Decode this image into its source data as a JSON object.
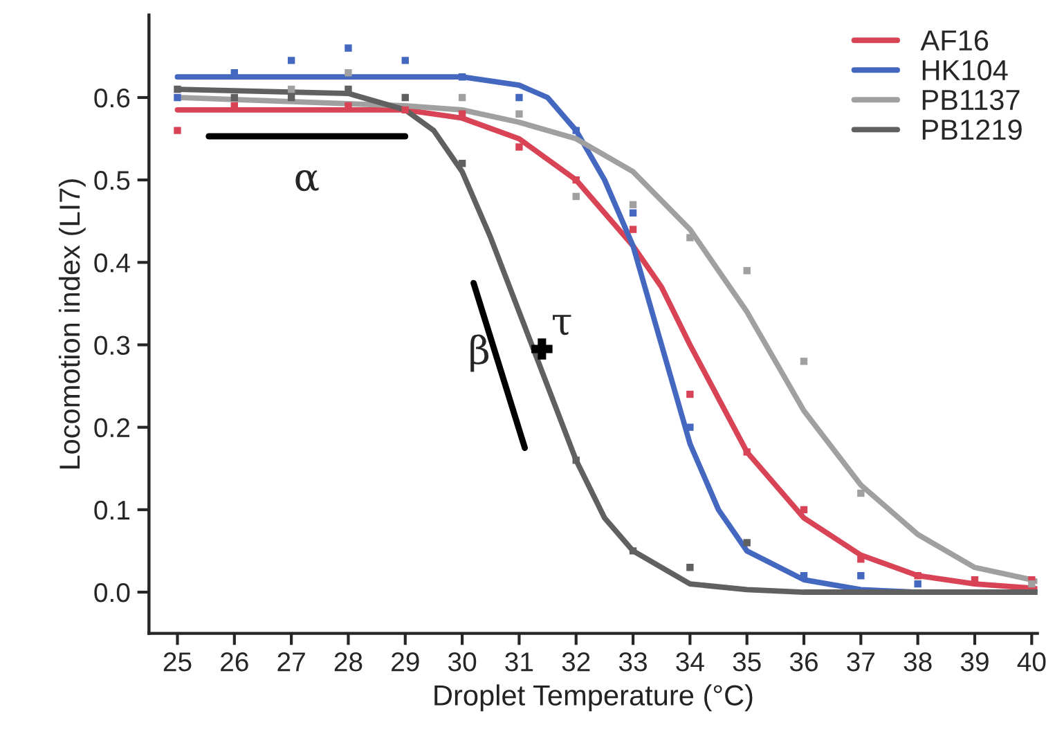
{
  "chart_data": {
    "type": "line",
    "xlabel": "Droplet Temperature (°C)",
    "ylabel": "Locomotion index (LI7)",
    "xlim": [
      24.5,
      40.1
    ],
    "xticks": [
      25,
      26,
      27,
      28,
      29,
      30,
      31,
      32,
      33,
      34,
      35,
      36,
      37,
      38,
      39,
      40
    ],
    "ylim": [
      -0.05,
      0.7
    ],
    "yticks": [
      {
        "value": 0,
        "label": "0.0"
      },
      {
        "value": 0.1,
        "label": "0.1"
      },
      {
        "value": 0.2,
        "label": "0.2"
      },
      {
        "value": 0.3,
        "label": "0.3"
      },
      {
        "value": 0.4,
        "label": "0.4"
      },
      {
        "value": 0.5,
        "label": "0.5"
      },
      {
        "value": 0.6,
        "label": "0.6"
      }
    ],
    "grid": false,
    "legend": "top right",
    "line_style": "solid",
    "series": [
      {
        "name": "AF16",
        "color": "#d84455",
        "marker": "none",
        "x": [
          25,
          29,
          30,
          31,
          32,
          33,
          33.5,
          34,
          35,
          36,
          37,
          38,
          39,
          40,
          40.1
        ],
        "values": [
          0.585,
          0.585,
          0.575,
          0.55,
          0.5,
          0.42,
          0.37,
          0.3,
          0.17,
          0.09,
          0.045,
          0.02,
          0.01,
          0.005,
          0.004
        ]
      },
      {
        "name": "HK104",
        "color": "#4468c0",
        "marker": "none",
        "x": [
          25,
          30,
          31,
          31.5,
          32,
          32.5,
          33,
          33.5,
          34,
          34.5,
          35,
          36,
          37,
          38,
          40.1
        ],
        "values": [
          0.625,
          0.625,
          0.615,
          0.6,
          0.56,
          0.5,
          0.42,
          0.3,
          0.18,
          0.1,
          0.05,
          0.015,
          0.003,
          0.0,
          0.0
        ]
      },
      {
        "name": "PB1137",
        "color": "#a0a0a0",
        "marker": "none",
        "x": [
          25,
          29,
          30,
          31,
          32,
          33,
          34,
          35,
          36,
          37,
          38,
          39,
          40,
          40.1
        ],
        "values": [
          0.6,
          0.59,
          0.585,
          0.57,
          0.55,
          0.51,
          0.44,
          0.34,
          0.22,
          0.13,
          0.07,
          0.03,
          0.015,
          0.013
        ]
      },
      {
        "name": "PB1219",
        "color": "#606060",
        "marker": "none",
        "x": [
          25,
          28,
          29,
          29.5,
          30,
          30.5,
          31,
          31.5,
          32,
          32.5,
          33,
          34,
          35,
          36,
          40.1
        ],
        "values": [
          0.61,
          0.605,
          0.585,
          0.56,
          0.51,
          0.43,
          0.34,
          0.25,
          0.16,
          0.09,
          0.05,
          0.01,
          0.003,
          0.0,
          0.0
        ]
      },
      {
        "color": "#d84455",
        "type": "scatter",
        "marker": "square",
        "x": [
          25,
          26,
          27,
          28,
          29,
          30,
          31,
          32,
          33,
          34,
          35,
          36,
          37,
          38,
          39,
          40
        ],
        "values": [
          0.56,
          0.59,
          null,
          0.59,
          0.585,
          0.58,
          0.54,
          0.5,
          0.44,
          0.24,
          0.17,
          0.1,
          0.04,
          0.02,
          0.015,
          0.015
        ]
      },
      {
        "color": "#4468c0",
        "type": "scatter",
        "marker": "square",
        "x": [
          25,
          26,
          27,
          28,
          29,
          30,
          31,
          32,
          33,
          34,
          35,
          36,
          37,
          38
        ],
        "values": [
          0.6,
          0.63,
          0.645,
          0.66,
          0.645,
          0.625,
          0.6,
          0.56,
          0.46,
          0.2,
          null,
          0.02,
          0.02,
          0.01
        ]
      },
      {
        "color": "#a0a0a0",
        "type": "scatter",
        "marker": "square",
        "x": [
          27,
          28,
          30,
          31,
          32,
          33,
          34,
          35,
          36,
          37,
          40
        ],
        "values": [
          0.61,
          0.63,
          0.6,
          0.58,
          0.48,
          0.47,
          0.43,
          0.39,
          0.28,
          0.12,
          0.01
        ]
      },
      {
        "color": "#606060",
        "type": "scatter",
        "marker": "square",
        "x": [
          25,
          26,
          27,
          28,
          29,
          30,
          32,
          33,
          34,
          35
        ],
        "values": [
          0.61,
          0.6,
          0.6,
          0.61,
          0.6,
          0.52,
          0.16,
          0.05,
          0.03,
          0.06
        ]
      },
      {
        "color": "#000000",
        "type": "line",
        "marker": "none",
        "x": [
          25.55,
          29.0
        ],
        "values": [
          0.553,
          0.553
        ]
      },
      {
        "color": "#000000",
        "type": "line",
        "marker": "none",
        "x": [
          30.2,
          31.1
        ],
        "values": [
          0.375,
          0.175
        ]
      }
    ],
    "annotations": [
      {
        "text": "α",
        "x": 27.27,
        "y": 0.553
      },
      {
        "text": "β",
        "x": 30.65,
        "y": 0.275
      },
      {
        "text": "τ",
        "x": 31.4,
        "y": 0.295
      }
    ]
  }
}
